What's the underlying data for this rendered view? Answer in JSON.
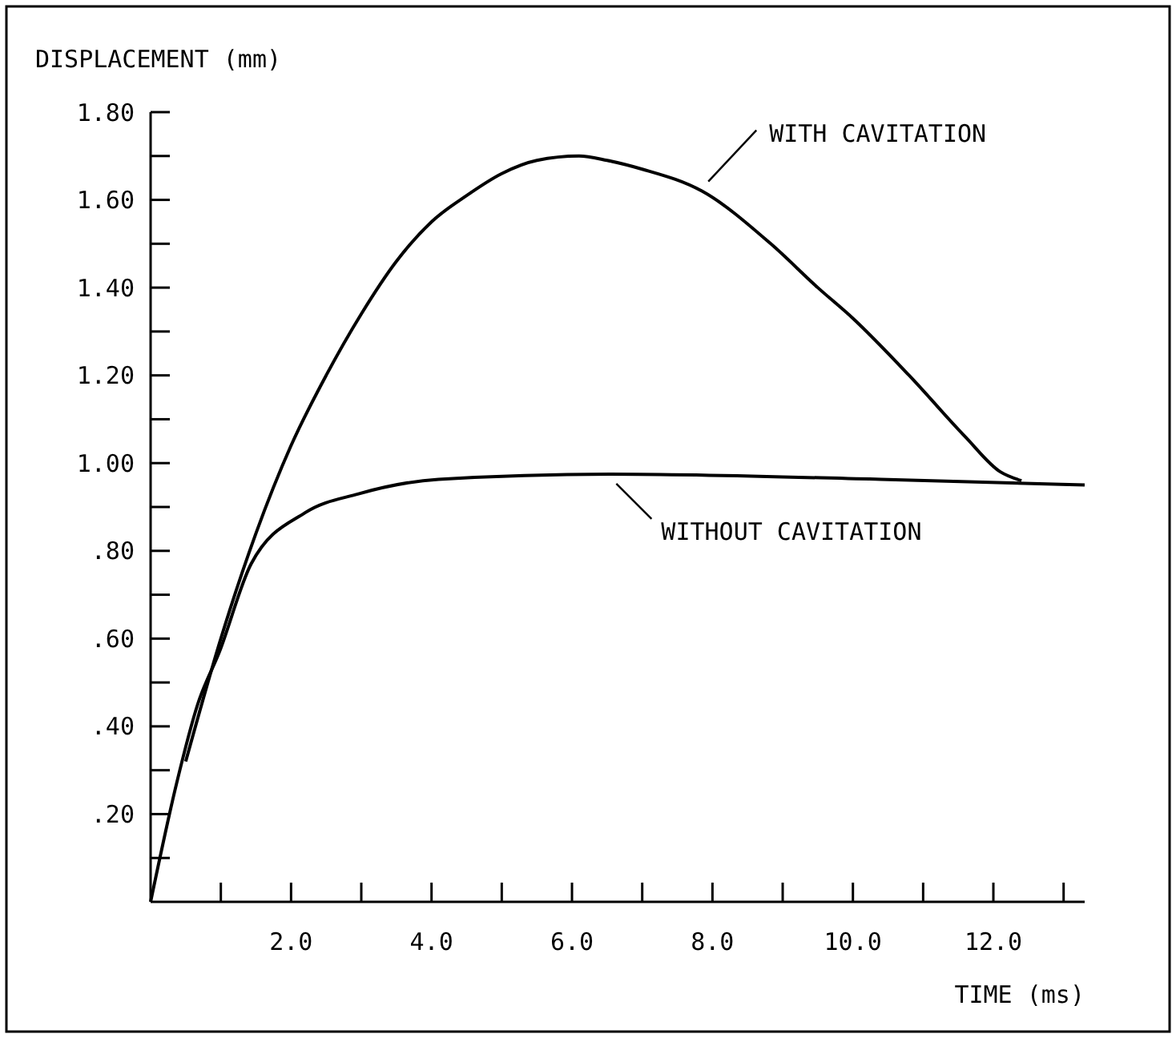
{
  "chart_data": {
    "type": "line",
    "xlabel": "TIME (ms)",
    "ylabel": "DISPLACEMENT (mm)",
    "xlim": [
      0,
      13.3
    ],
    "ylim": [
      0,
      1.8
    ],
    "xticks": [
      {
        "value": 1,
        "label": null
      },
      {
        "value": 2,
        "label": "2.0"
      },
      {
        "value": 3,
        "label": null
      },
      {
        "value": 4,
        "label": "4.0"
      },
      {
        "value": 5,
        "label": null
      },
      {
        "value": 6,
        "label": "6.0"
      },
      {
        "value": 7,
        "label": null
      },
      {
        "value": 8,
        "label": "8.0"
      },
      {
        "value": 9,
        "label": null
      },
      {
        "value": 10,
        "label": "10.0"
      },
      {
        "value": 11,
        "label": null
      },
      {
        "value": 12,
        "label": "12.0"
      },
      {
        "value": 13,
        "label": null
      }
    ],
    "yticks": [
      {
        "value": 0.1,
        "label": null
      },
      {
        "value": 0.2,
        "label": ".20"
      },
      {
        "value": 0.3,
        "label": null
      },
      {
        "value": 0.4,
        "label": ".40"
      },
      {
        "value": 0.5,
        "label": null
      },
      {
        "value": 0.6,
        "label": ".60"
      },
      {
        "value": 0.7,
        "label": null
      },
      {
        "value": 0.8,
        "label": ".80"
      },
      {
        "value": 0.9,
        "label": null
      },
      {
        "value": 1.0,
        "label": "1.00"
      },
      {
        "value": 1.1,
        "label": null
      },
      {
        "value": 1.2,
        "label": "1.20"
      },
      {
        "value": 1.3,
        "label": null
      },
      {
        "value": 1.4,
        "label": "1.40"
      },
      {
        "value": 1.5,
        "label": null
      },
      {
        "value": 1.6,
        "label": "1.60"
      },
      {
        "value": 1.7,
        "label": null
      },
      {
        "value": 1.8,
        "label": "1.80"
      }
    ],
    "grid": false,
    "marker": "none",
    "line_style": "solid",
    "series": [
      {
        "name": "WITH CAVITATION",
        "color": "#000000",
        "x": [
          0.5,
          1.0,
          1.5,
          2.0,
          2.5,
          3.0,
          3.5,
          4.0,
          4.5,
          5.0,
          5.5,
          6.1,
          6.5,
          7.0,
          7.85,
          8.83,
          9.5,
          10.0,
          10.8,
          11.6,
          12.1,
          12.4
        ],
        "values": [
          0.32,
          0.6,
          0.84,
          1.04,
          1.2,
          1.34,
          1.46,
          1.55,
          1.61,
          1.66,
          1.69,
          1.7,
          1.69,
          1.67,
          1.62,
          1.5,
          1.4,
          1.33,
          1.2,
          1.06,
          0.98,
          0.96
        ]
      },
      {
        "name": "WITHOUT CAVITATION",
        "color": "#000000",
        "x": [
          0,
          0.37,
          0.67,
          0.98,
          1.43,
          2.2,
          2.96,
          4.1,
          6.54,
          10.4,
          13.3
        ],
        "values": [
          0,
          0.27,
          0.45,
          0.57,
          0.77,
          0.887,
          0.93,
          0.963,
          0.975,
          0.963,
          0.95
        ]
      }
    ]
  }
}
